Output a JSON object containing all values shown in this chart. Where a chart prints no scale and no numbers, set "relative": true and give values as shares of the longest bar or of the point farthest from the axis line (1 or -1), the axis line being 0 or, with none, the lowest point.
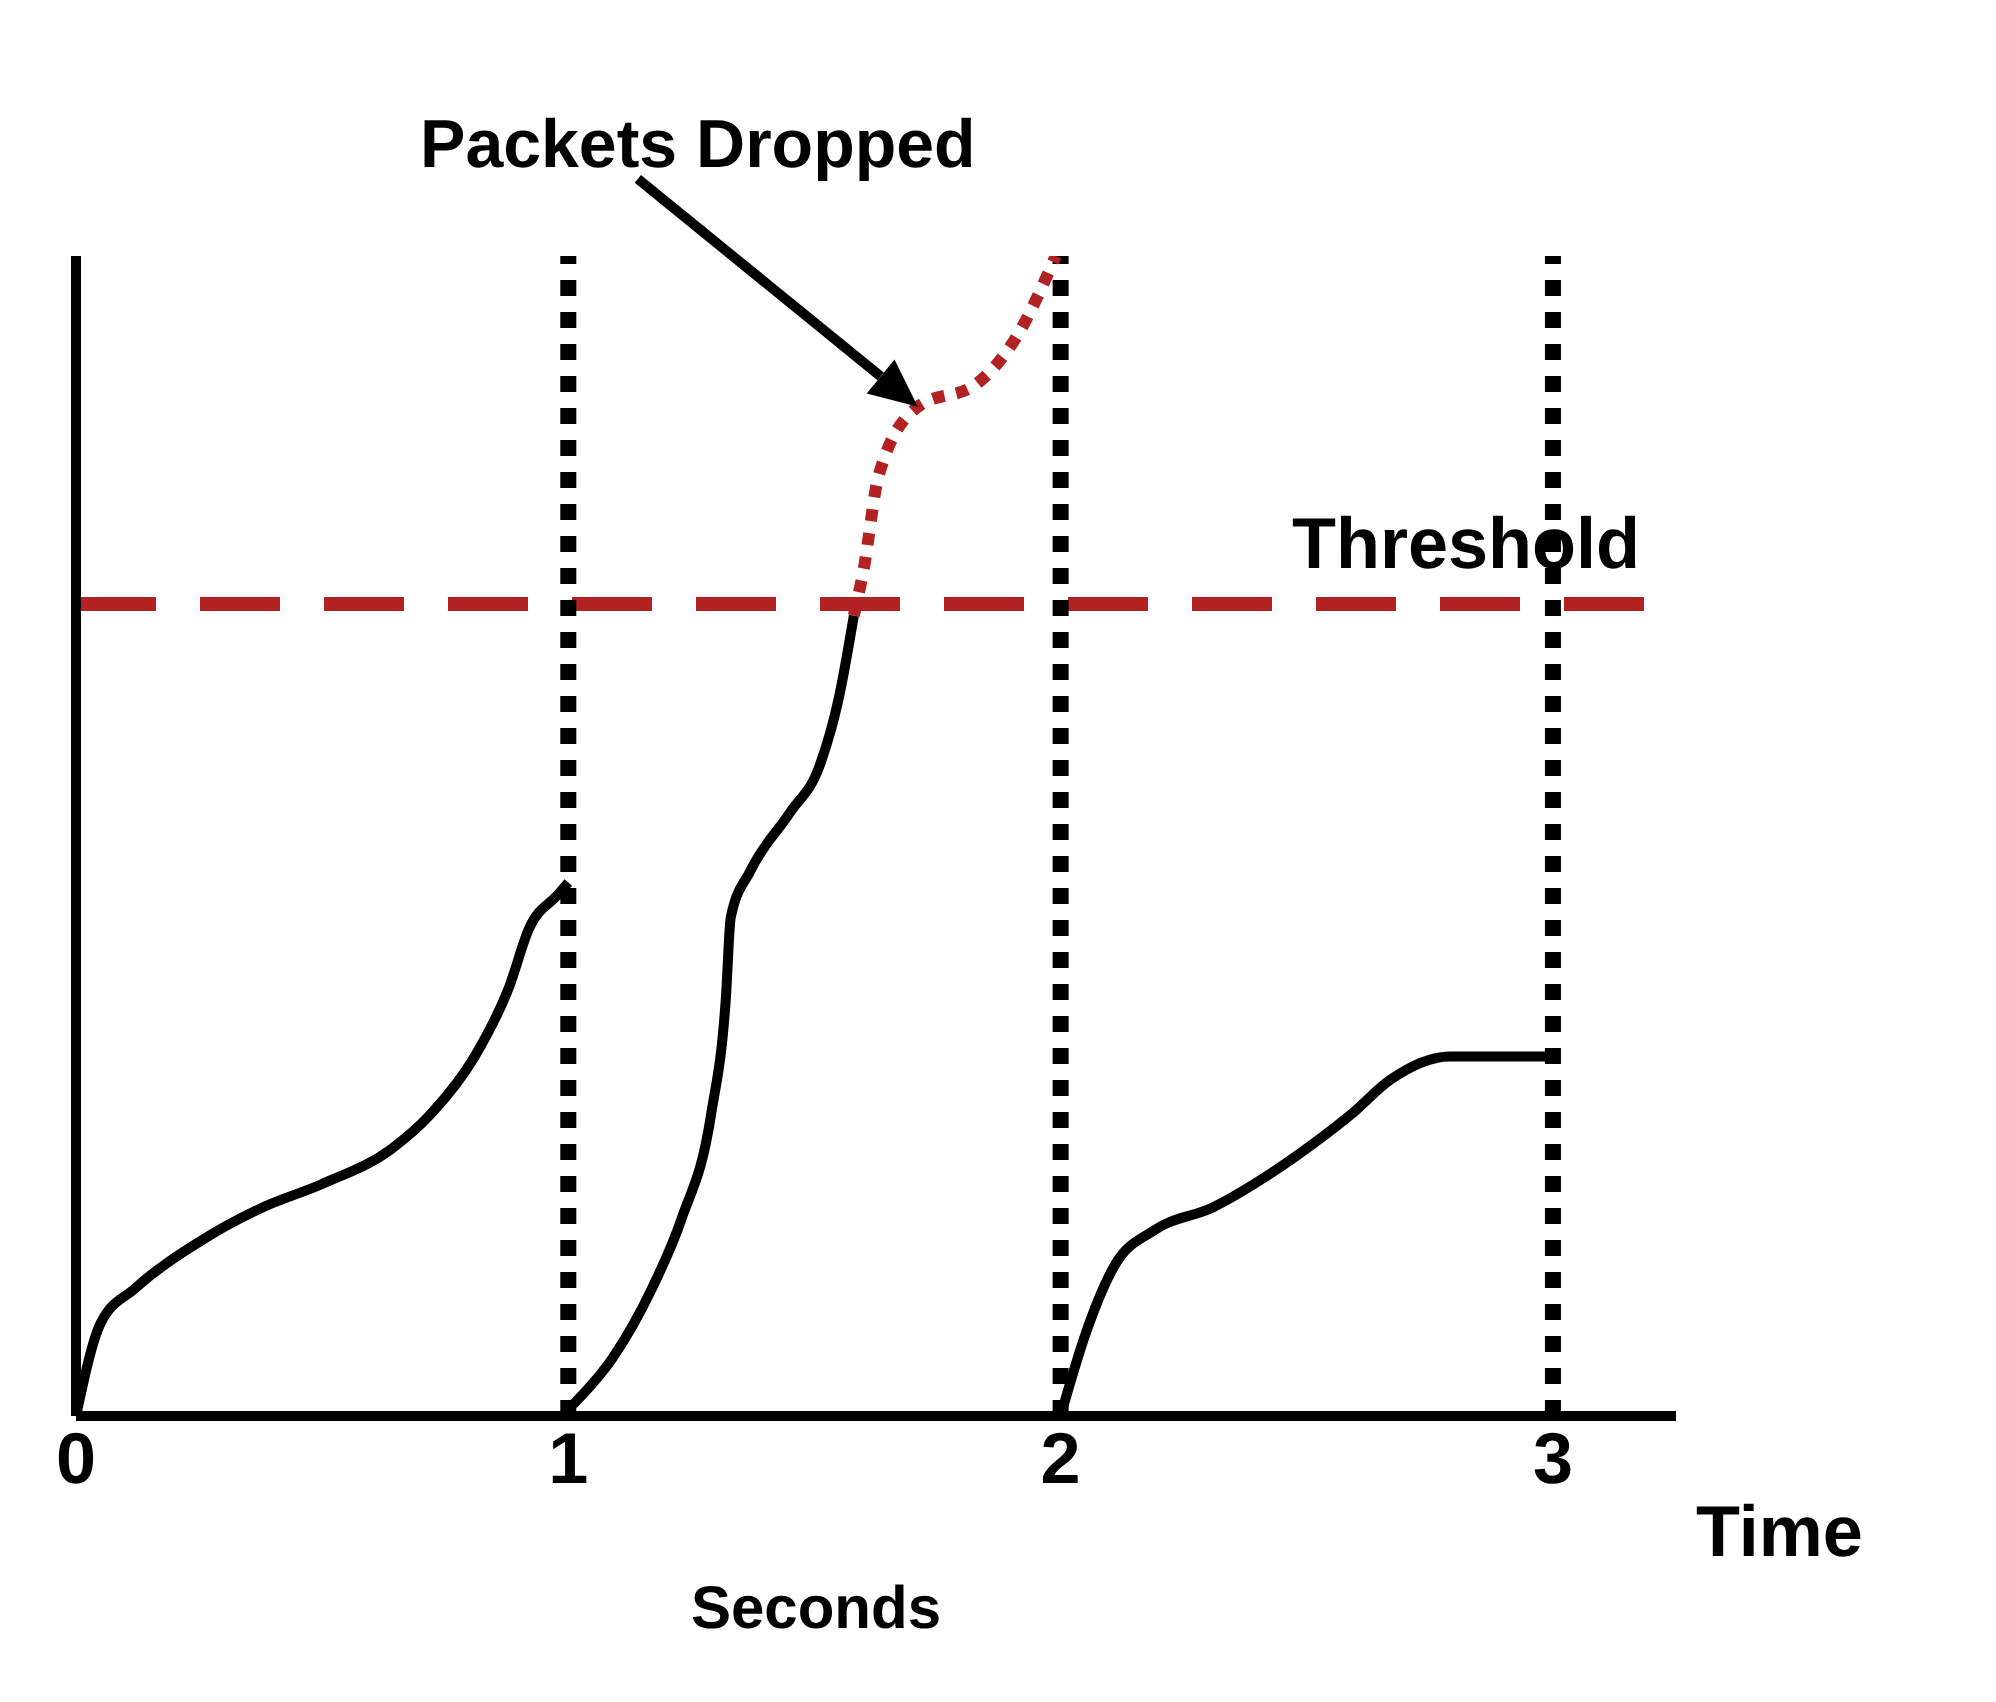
{
  "chart_data": {
    "type": "line",
    "relative": true,
    "xlabel": "Time",
    "xlim": [
      0,
      3.25
    ],
    "xticks": [
      0,
      1,
      2,
      3
    ],
    "grid": false,
    "marker": "none",
    "series": [
      {
        "color": "#000000",
        "line_style": "solid",
        "x": [
          0,
          0.05,
          0.12,
          0.25,
          0.38,
          0.5,
          0.64,
          0.72,
          0.81,
          0.88,
          0.92,
          0.98,
          1
        ],
        "values": [
          0,
          0.08,
          0.11,
          0.15,
          0.18,
          0.2,
          0.23,
          0.26,
          0.31,
          0.37,
          0.42,
          0.45,
          0.46
        ]
      },
      {
        "color": "#000000",
        "line_style": "solid",
        "x": [
          1.01,
          1.09,
          1.17,
          1.23,
          1.29,
          1.32,
          1.33,
          1.37,
          1.45,
          1.51,
          1.55,
          1.58
        ],
        "values": [
          0.01,
          0.05,
          0.11,
          0.17,
          0.26,
          0.36,
          0.43,
          0.47,
          0.52,
          0.56,
          0.62,
          0.69
        ]
      },
      {
        "color": "#b22222",
        "line_style": "dotted",
        "x": [
          1.58,
          1.6,
          1.63,
          1.71,
          1.83,
          1.91,
          1.99
        ],
        "values": [
          0.69,
          0.73,
          0.81,
          0.87,
          0.89,
          0.93,
          1
        ]
      },
      {
        "color": "#000000",
        "line_style": "solid",
        "x": [
          2,
          2.05,
          2.11,
          2.19,
          2.31,
          2.43,
          2.53,
          2.59,
          2.67,
          2.79,
          2.91,
          2.99
        ],
        "values": [
          0,
          0.07,
          0.13,
          0.16,
          0.18,
          0.21,
          0.24,
          0.26,
          0.29,
          0.31,
          0.31,
          0.31
        ]
      }
    ],
    "ref_lines": [
      {
        "axis": "y",
        "value": 0.7,
        "label": "Threshold",
        "color": "#b22222",
        "line_style": "dashed"
      },
      {
        "axis": "x",
        "value": 1,
        "color": "#000000",
        "line_style": "dotted"
      },
      {
        "axis": "x",
        "value": 2,
        "color": "#000000",
        "line_style": "dotted"
      },
      {
        "axis": "x",
        "value": 3,
        "color": "#000000",
        "line_style": "dotted"
      }
    ],
    "annotations": [
      "Packets Dropped",
      "Seconds"
    ]
  }
}
